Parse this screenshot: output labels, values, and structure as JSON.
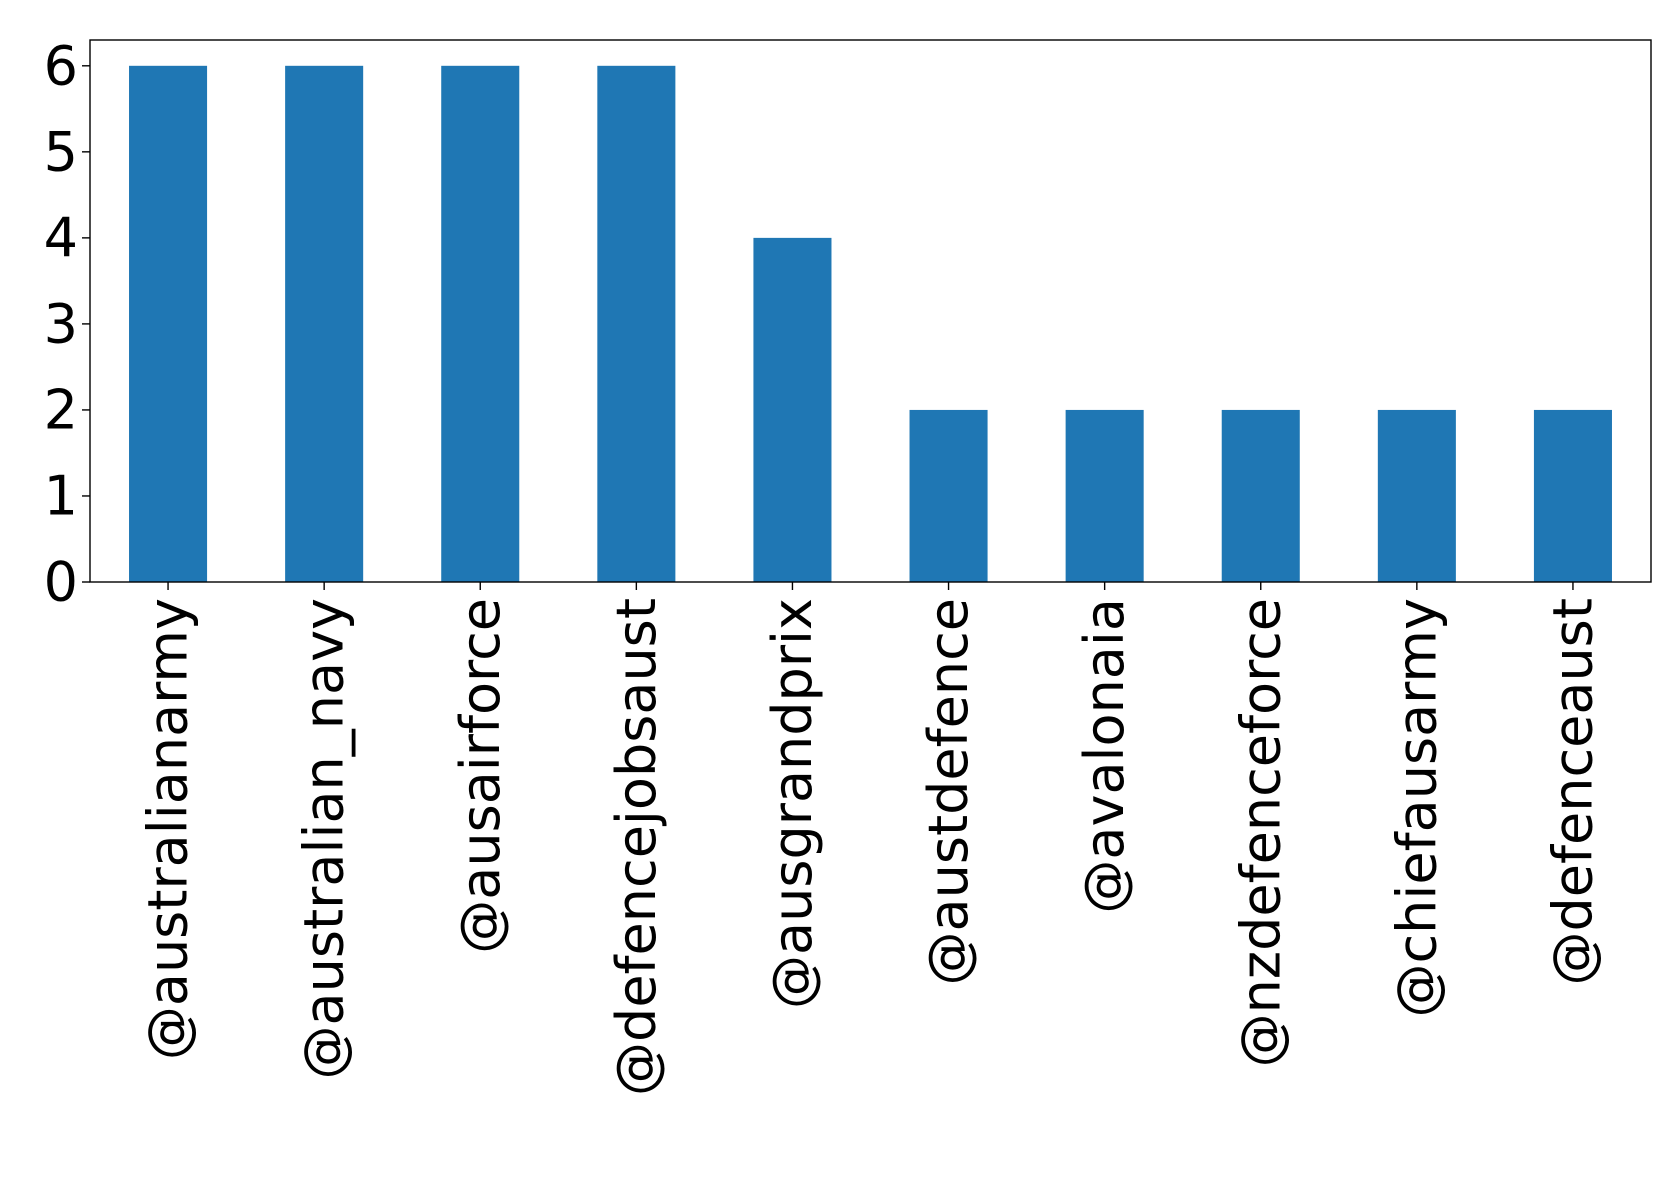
{
  "chart_data": {
    "type": "bar",
    "title": "",
    "xlabel": "",
    "ylabel": "",
    "categories": [
      "@australianarmy",
      "@australian_navy",
      "@ausairforce",
      "@defencejobsaust",
      "@ausgrandprix",
      "@austdefence",
      "@avalonaia",
      "@nzdefenceforce",
      "@chiefausarmy",
      "@defenceaust"
    ],
    "values": [
      6,
      6,
      6,
      6,
      4,
      2,
      2,
      2,
      2,
      2
    ],
    "ylim": [
      0,
      6.3
    ],
    "yticks": [
      0,
      1,
      2,
      3,
      4,
      5,
      6
    ],
    "grid": false,
    "legend": "none",
    "bar_color": "#1f77b4"
  }
}
